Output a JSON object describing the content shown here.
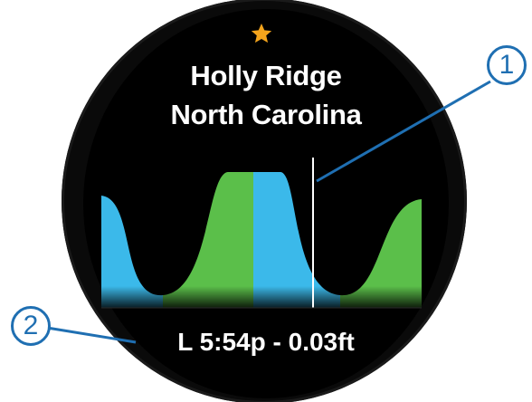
{
  "location": {
    "name": "Holly Ridge",
    "region": "North Carolina",
    "favorite_icon": "star-icon",
    "favorite_color": "#f4a41c"
  },
  "tide_graph": {
    "rising_color": "#3bb9ea",
    "falling_color": "#5bbf4a",
    "current_time_marker": "vertical-line"
  },
  "next_tide": {
    "label": "L 5:54p - 0.03ft"
  },
  "callouts": {
    "first": "1",
    "second": "2",
    "color": "#1f6fb2"
  }
}
